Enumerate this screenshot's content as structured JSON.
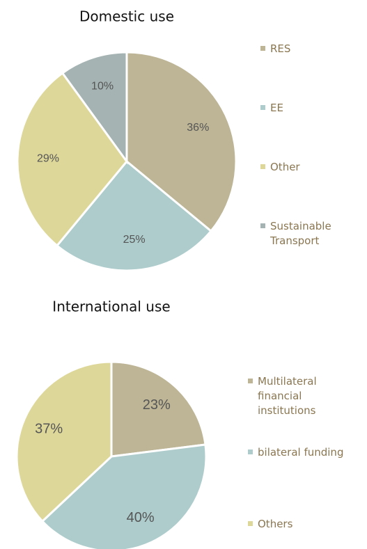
{
  "chart_data": [
    {
      "type": "pie",
      "title": "Domestic use",
      "categories": [
        "RES",
        "EE",
        "Other",
        "Sustainable Transport"
      ],
      "values": [
        36,
        25,
        29,
        10
      ],
      "value_labels": [
        "36%",
        "25%",
        "29%",
        "10%"
      ],
      "colors": [
        "#bdb596",
        "#aecccc",
        "#ddd79a",
        "#a5b3b2"
      ],
      "legend": "right"
    },
    {
      "type": "pie",
      "title": "International use",
      "categories": [
        "Multilateral financial institutions",
        "bilateral funding",
        "Others"
      ],
      "values": [
        23,
        40,
        37
      ],
      "value_labels": [
        "23%",
        "40%",
        "37%"
      ],
      "colors": [
        "#bdb596",
        "#aecccc",
        "#ddd79a"
      ],
      "legend": "right"
    }
  ]
}
